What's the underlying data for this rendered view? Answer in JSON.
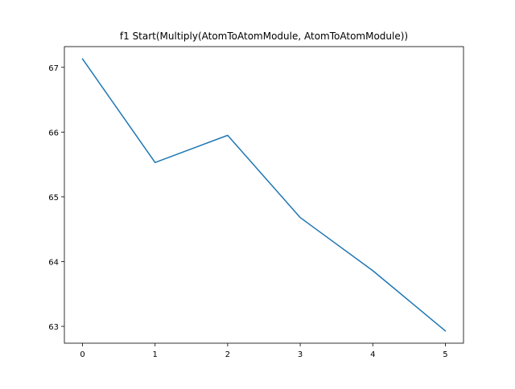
{
  "chart_data": {
    "type": "line",
    "title": "f1 Start(Multiply(AtomToAtomModule, AtomToAtomModule))",
    "xlabel": "",
    "ylabel": "",
    "x": [
      0,
      1,
      2,
      3,
      4,
      5
    ],
    "series": [
      {
        "values": [
          67.13,
          65.53,
          65.95,
          64.68,
          63.86,
          62.93
        ],
        "color": "#1f77b4"
      }
    ],
    "xticks": [
      0,
      1,
      2,
      3,
      4,
      5
    ],
    "yticks": [
      63,
      64,
      65,
      66,
      67
    ],
    "xlim": [
      -0.25,
      5.25
    ],
    "ylim": [
      62.74,
      67.32
    ],
    "grid": false,
    "legend": "none"
  }
}
